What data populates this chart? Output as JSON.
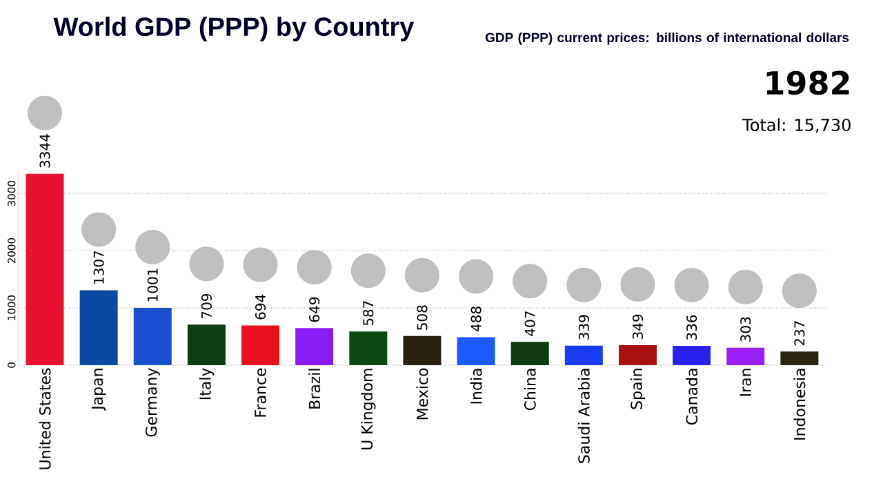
{
  "chart_data": {
    "type": "bar",
    "title": "World GDP (PPP) by Country",
    "subtitle": "GDP (PPP) current prices: billions of international dollars",
    "annotations": [
      "1982",
      "Total: 15,730"
    ],
    "categories": [
      "United States",
      "Japan",
      "Germany",
      "Italy",
      "France",
      "Brazil",
      "U Kingdom",
      "Mexico",
      "India",
      "China",
      "Saudi Arabia",
      "Spain",
      "Canada",
      "Iran",
      "Indonesia"
    ],
    "values": [
      3344,
      1307,
      1001,
      709,
      694,
      649,
      587,
      508,
      488,
      407,
      339,
      349,
      336,
      303,
      237
    ],
    "colors": [
      "#e8112d",
      "#0a4aa5",
      "#1a4fd0",
      "#0d3d12",
      "#e8101e",
      "#8a1cf5",
      "#0a4a12",
      "#2a2010",
      "#1a5aff",
      "#0e3a10",
      "#1a3cf0",
      "#a81010",
      "#2a20f0",
      "#9a20f5",
      "#2a2510"
    ],
    "ylim": [
      0,
      3400
    ],
    "yticks": [
      0,
      1000,
      2000,
      3000
    ],
    "grid": "y",
    "data_labels": true
  }
}
